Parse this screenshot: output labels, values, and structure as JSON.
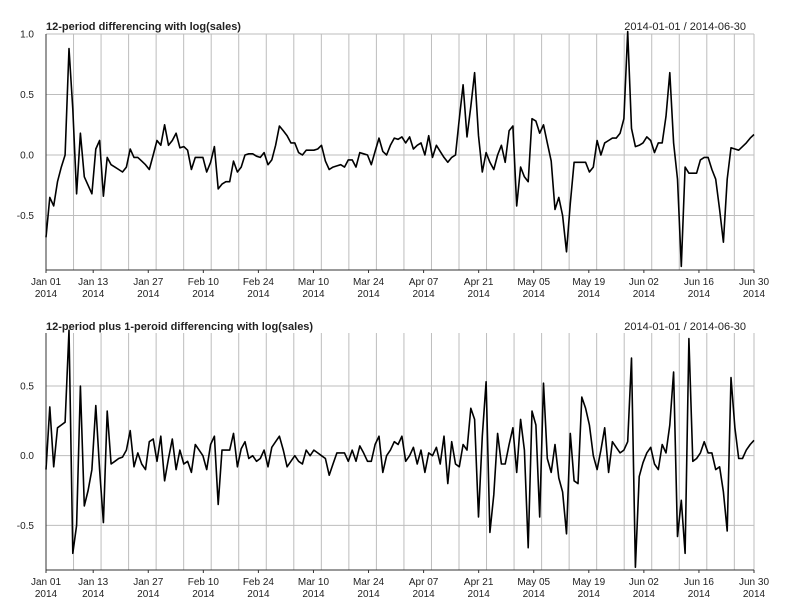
{
  "chart_data": [
    {
      "type": "line",
      "title": "12-period differencing with log(sales)",
      "date_range": "2014-01-01 / 2014-06-30",
      "x_start": "2014-01-01",
      "x_end": "2014-06-30",
      "x_ticks": [
        {
          "date": "2014-01-01",
          "label": "Jan 01",
          "year": "2014"
        },
        {
          "date": "2014-01-13",
          "label": "Jan 13",
          "year": "2014"
        },
        {
          "date": "2014-01-27",
          "label": "Jan 27",
          "year": "2014"
        },
        {
          "date": "2014-02-10",
          "label": "Feb 10",
          "year": "2014"
        },
        {
          "date": "2014-02-24",
          "label": "Feb 24",
          "year": "2014"
        },
        {
          "date": "2014-03-10",
          "label": "Mar 10",
          "year": "2014"
        },
        {
          "date": "2014-03-24",
          "label": "Mar 24",
          "year": "2014"
        },
        {
          "date": "2014-04-07",
          "label": "Apr 07",
          "year": "2014"
        },
        {
          "date": "2014-04-21",
          "label": "Apr 21",
          "year": "2014"
        },
        {
          "date": "2014-05-05",
          "label": "May 05",
          "year": "2014"
        },
        {
          "date": "2014-05-19",
          "label": "May 19",
          "year": "2014"
        },
        {
          "date": "2014-06-02",
          "label": "Jun 02",
          "year": "2014"
        },
        {
          "date": "2014-06-16",
          "label": "Jun 16",
          "year": "2014"
        },
        {
          "date": "2014-06-30",
          "label": "Jun 30",
          "year": "2014"
        }
      ],
      "ylim": [
        -0.95,
        1.0
      ],
      "y_ticks": [
        {
          "value": 1.0,
          "label": "1.0"
        },
        {
          "value": 0.5,
          "label": "0.5"
        },
        {
          "value": 0.0,
          "label": "0.0"
        },
        {
          "value": -0.5,
          "label": "-0.5"
        }
      ],
      "grid": true,
      "values": [
        -0.68,
        -0.35,
        -0.42,
        -0.22,
        -0.1,
        0.0,
        0.88,
        0.38,
        -0.32,
        0.18,
        -0.18,
        -0.25,
        -0.32,
        0.05,
        0.12,
        -0.34,
        -0.02,
        -0.08,
        -0.1,
        -0.12,
        -0.14,
        -0.1,
        0.05,
        -0.02,
        -0.02,
        -0.05,
        -0.08,
        -0.12,
        0.0,
        0.12,
        0.08,
        0.25,
        0.08,
        0.12,
        0.18,
        0.06,
        0.07,
        0.04,
        -0.12,
        -0.02,
        -0.02,
        -0.02,
        -0.14,
        -0.06,
        0.07,
        -0.28,
        -0.24,
        -0.22,
        -0.22,
        -0.05,
        -0.14,
        -0.1,
        0.0,
        0.01,
        0.01,
        -0.01,
        -0.02,
        0.02,
        -0.08,
        -0.04,
        0.08,
        0.24,
        0.2,
        0.16,
        0.1,
        0.1,
        0.02,
        0.0,
        0.04,
        0.04,
        0.04,
        0.05,
        0.08,
        -0.05,
        -0.12,
        -0.1,
        -0.09,
        -0.08,
        -0.1,
        -0.04,
        -0.04,
        -0.1,
        0.02,
        0.01,
        0.0,
        -0.08,
        0.03,
        0.14,
        0.03,
        0.0,
        0.08,
        0.14,
        0.13,
        0.15,
        0.1,
        0.15,
        0.05,
        0.08,
        0.1,
        0.0,
        0.16,
        -0.02,
        0.08,
        0.03,
        -0.02,
        -0.06,
        -0.02,
        0.0,
        0.3,
        0.58,
        0.15,
        0.4,
        0.68,
        0.16,
        -0.14,
        0.02,
        -0.06,
        -0.12,
        0.0,
        0.08,
        -0.06,
        0.2,
        0.24,
        -0.42,
        -0.1,
        -0.18,
        -0.22,
        0.3,
        0.28,
        0.18,
        0.25,
        0.1,
        -0.05,
        -0.45,
        -0.35,
        -0.5,
        -0.8,
        -0.4,
        -0.06,
        -0.06,
        -0.06,
        -0.06,
        -0.14,
        -0.1,
        0.12,
        0.0,
        0.1,
        0.12,
        0.14,
        0.14,
        0.18,
        0.3,
        1.02,
        0.22,
        0.07,
        0.08,
        0.1,
        0.15,
        0.12,
        0.02,
        0.1,
        0.1,
        0.32,
        0.68,
        0.1,
        -0.2,
        -0.92,
        -0.1,
        -0.15,
        -0.15,
        -0.15,
        -0.04,
        -0.02,
        -0.02,
        -0.12,
        -0.2,
        -0.45,
        -0.72,
        -0.2,
        0.06,
        0.05,
        0.04,
        0.07,
        0.1,
        0.14,
        0.17
      ]
    },
    {
      "type": "line",
      "title": "12-period plus 1-peroid differencing with log(sales)",
      "date_range": "2014-01-01 / 2014-06-30",
      "x_start": "2014-01-01",
      "x_end": "2014-06-30",
      "x_ticks": [
        {
          "date": "2014-01-01",
          "label": "Jan 01",
          "year": "2014"
        },
        {
          "date": "2014-01-13",
          "label": "Jan 13",
          "year": "2014"
        },
        {
          "date": "2014-01-27",
          "label": "Jan 27",
          "year": "2014"
        },
        {
          "date": "2014-02-10",
          "label": "Feb 10",
          "year": "2014"
        },
        {
          "date": "2014-02-24",
          "label": "Feb 24",
          "year": "2014"
        },
        {
          "date": "2014-03-10",
          "label": "Mar 10",
          "year": "2014"
        },
        {
          "date": "2014-03-24",
          "label": "Mar 24",
          "year": "2014"
        },
        {
          "date": "2014-04-07",
          "label": "Apr 07",
          "year": "2014"
        },
        {
          "date": "2014-04-21",
          "label": "Apr 21",
          "year": "2014"
        },
        {
          "date": "2014-05-05",
          "label": "May 05",
          "year": "2014"
        },
        {
          "date": "2014-05-19",
          "label": "May 19",
          "year": "2014"
        },
        {
          "date": "2014-06-02",
          "label": "Jun 02",
          "year": "2014"
        },
        {
          "date": "2014-06-16",
          "label": "Jun 16",
          "year": "2014"
        },
        {
          "date": "2014-06-30",
          "label": "Jun 30",
          "year": "2014"
        }
      ],
      "ylim": [
        -0.82,
        0.88
      ],
      "y_ticks": [
        {
          "value": 0.5,
          "label": "0.5"
        },
        {
          "value": 0.0,
          "label": "0.0"
        },
        {
          "value": -0.5,
          "label": "-0.5"
        }
      ],
      "grid": true,
      "values": [
        -0.1,
        0.35,
        -0.08,
        0.2,
        0.22,
        0.24,
        0.9,
        -0.7,
        -0.5,
        0.5,
        -0.36,
        -0.25,
        -0.1,
        0.36,
        -0.1,
        -0.48,
        0.32,
        -0.06,
        -0.04,
        -0.02,
        -0.01,
        0.04,
        0.18,
        -0.08,
        0.02,
        -0.06,
        -0.1,
        0.1,
        0.12,
        -0.04,
        0.14,
        -0.18,
        -0.02,
        0.12,
        -0.1,
        0.04,
        -0.06,
        -0.04,
        -0.12,
        0.08,
        0.04,
        0.0,
        -0.1,
        0.08,
        0.14,
        -0.35,
        0.04,
        0.04,
        0.04,
        0.16,
        -0.08,
        0.05,
        0.1,
        -0.02,
        0.0,
        -0.04,
        -0.02,
        0.04,
        -0.08,
        0.06,
        0.1,
        0.14,
        0.04,
        -0.08,
        -0.04,
        0.0,
        -0.04,
        -0.06,
        0.04,
        0.0,
        0.04,
        0.02,
        0.0,
        -0.02,
        -0.14,
        -0.06,
        0.02,
        0.02,
        0.02,
        -0.04,
        0.04,
        -0.04,
        0.07,
        0.02,
        -0.04,
        -0.04,
        0.08,
        0.14,
        -0.12,
        0.0,
        0.04,
        0.1,
        0.08,
        0.14,
        -0.04,
        0.0,
        0.06,
        -0.06,
        0.04,
        -0.12,
        0.02,
        0.0,
        0.06,
        -0.06,
        0.14,
        -0.2,
        0.1,
        -0.06,
        -0.08,
        0.08,
        0.04,
        0.34,
        0.26,
        -0.44,
        0.14,
        0.53,
        -0.55,
        -0.28,
        0.16,
        -0.06,
        -0.06,
        0.08,
        0.2,
        -0.12,
        0.26,
        0.04,
        -0.66,
        0.32,
        0.22,
        -0.44,
        0.52,
        -0.02,
        -0.12,
        0.08,
        -0.16,
        -0.26,
        -0.56,
        0.16,
        -0.18,
        -0.2,
        0.42,
        0.34,
        0.22,
        0.0,
        -0.1,
        0.04,
        0.2,
        -0.12,
        0.1,
        0.06,
        0.02,
        0.04,
        0.1,
        0.7,
        -0.8,
        -0.15,
        -0.05,
        0.02,
        0.06,
        -0.06,
        -0.1,
        0.08,
        0.02,
        0.22,
        0.6,
        -0.58,
        -0.32,
        -0.7,
        0.84,
        -0.04,
        -0.02,
        0.02,
        0.1,
        0.02,
        0.02,
        -0.1,
        -0.08,
        -0.26,
        -0.54,
        0.56,
        0.2,
        -0.02,
        -0.02,
        0.04,
        0.08,
        0.11
      ]
    }
  ]
}
